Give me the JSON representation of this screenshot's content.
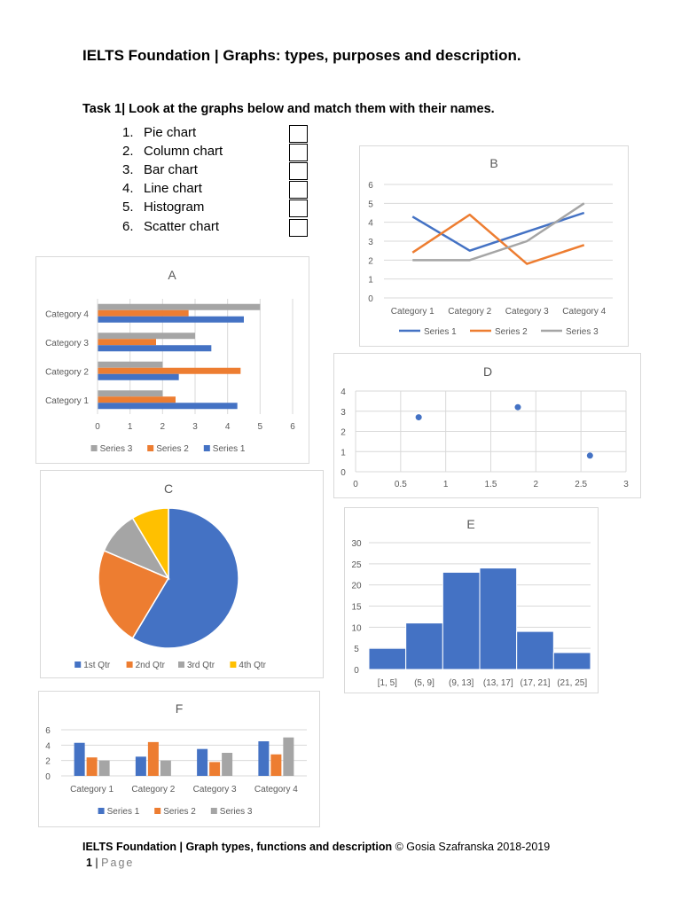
{
  "header": {
    "title": "IELTS Foundation | Graphs: types, purposes and description."
  },
  "task": {
    "instruction": "Task 1| Look at the graphs below and match them with their names.",
    "options": [
      {
        "num": "1.",
        "label": "Pie chart"
      },
      {
        "num": "2.",
        "label": "Column chart"
      },
      {
        "num": "3.",
        "label": "Bar chart"
      },
      {
        "num": "4.",
        "label": "Line chart"
      },
      {
        "num": "5.",
        "label": "Histogram"
      },
      {
        "num": "6.",
        "label": "Scatter chart"
      }
    ]
  },
  "colors": {
    "series1": "#4472c4",
    "series2": "#ed7d31",
    "series3": "#a5a5a5",
    "series4": "#ffc000",
    "grid": "#d9d9d9",
    "tick": "#595959"
  },
  "chart_data": [
    {
      "id": "A",
      "type": "bar",
      "orientation": "horizontal",
      "title": "A",
      "categories": [
        "Category 1",
        "Category 2",
        "Category 3",
        "Category 4"
      ],
      "series": [
        {
          "name": "Series 1",
          "values": [
            4.3,
            2.5,
            3.5,
            4.5
          ]
        },
        {
          "name": "Series 2",
          "values": [
            2.4,
            4.4,
            1.8,
            2.8
          ]
        },
        {
          "name": "Series 3",
          "values": [
            2,
            2,
            3,
            5
          ]
        }
      ],
      "xlim": [
        0,
        6
      ],
      "ticks": [
        "0",
        "1",
        "2",
        "3",
        "4",
        "5",
        "6"
      ],
      "legend": [
        "Series 3",
        "Series 2",
        "Series 1"
      ],
      "legend_position": "bottom",
      "grid": true
    },
    {
      "id": "B",
      "type": "line",
      "title": "B",
      "categories": [
        "Category 1",
        "Category 2",
        "Category 3",
        "Category 4"
      ],
      "series": [
        {
          "name": "Series 1",
          "values": [
            4.3,
            2.5,
            3.5,
            4.5
          ]
        },
        {
          "name": "Series 2",
          "values": [
            2.4,
            4.4,
            1.8,
            2.8
          ]
        },
        {
          "name": "Series 3",
          "values": [
            2,
            2,
            3,
            5
          ]
        }
      ],
      "ylim": [
        0,
        6
      ],
      "ticks": [
        "0",
        "1",
        "2",
        "3",
        "4",
        "5",
        "6"
      ],
      "legend": [
        "Series 1",
        "Series 2",
        "Series 3"
      ],
      "legend_position": "bottom",
      "grid": true
    },
    {
      "id": "C",
      "type": "pie",
      "title": "C",
      "slices": [
        {
          "label": "1st Qtr",
          "value": 8.2
        },
        {
          "label": "2nd Qtr",
          "value": 3.2
        },
        {
          "label": "3rd Qtr",
          "value": 1.4
        },
        {
          "label": "4th Qtr",
          "value": 1.2
        }
      ],
      "legend_position": "bottom"
    },
    {
      "id": "D",
      "type": "scatter",
      "title": "D",
      "points": [
        {
          "x": 0.7,
          "y": 2.7
        },
        {
          "x": 1.8,
          "y": 3.2
        },
        {
          "x": 2.6,
          "y": 0.8
        }
      ],
      "xlim": [
        0,
        3
      ],
      "ylim": [
        0,
        4
      ],
      "xticks": [
        "0",
        "0.5",
        "1",
        "1.5",
        "2",
        "2.5",
        "3"
      ],
      "yticks": [
        "0",
        "1",
        "2",
        "3",
        "4"
      ],
      "grid": true
    },
    {
      "id": "E",
      "type": "bar",
      "title": "E",
      "subtype": "histogram",
      "categories": [
        "[1, 5]",
        "(5, 9]",
        "(9, 13]",
        "(13, 17]",
        "(17, 21]",
        "(21, 25]"
      ],
      "values": [
        5,
        11,
        23,
        24,
        9,
        4
      ],
      "ylim": [
        0,
        30
      ],
      "ticks": [
        "0",
        "5",
        "10",
        "15",
        "20",
        "25",
        "30"
      ],
      "grid": true
    },
    {
      "id": "F",
      "type": "bar",
      "orientation": "vertical",
      "title": "F",
      "categories": [
        "Category 1",
        "Category 2",
        "Category 3",
        "Category 4"
      ],
      "series": [
        {
          "name": "Series 1",
          "values": [
            4.3,
            2.5,
            3.5,
            4.5
          ]
        },
        {
          "name": "Series 2",
          "values": [
            2.4,
            4.4,
            1.8,
            2.8
          ]
        },
        {
          "name": "Series 3",
          "values": [
            2,
            2,
            3,
            5
          ]
        }
      ],
      "ylim": [
        0,
        6
      ],
      "ticks": [
        "0",
        "2",
        "4",
        "6"
      ],
      "legend": [
        "Series 1",
        "Series 2",
        "Series 3"
      ],
      "legend_position": "bottom",
      "grid": true
    }
  ],
  "footer": {
    "text_bold": "IELTS Foundation | Graph types, functions and description",
    "text_rest": " © Gosia Szafranska 2018-2019",
    "page_number": "1",
    "page_sep": " | ",
    "page_label": "Page"
  }
}
